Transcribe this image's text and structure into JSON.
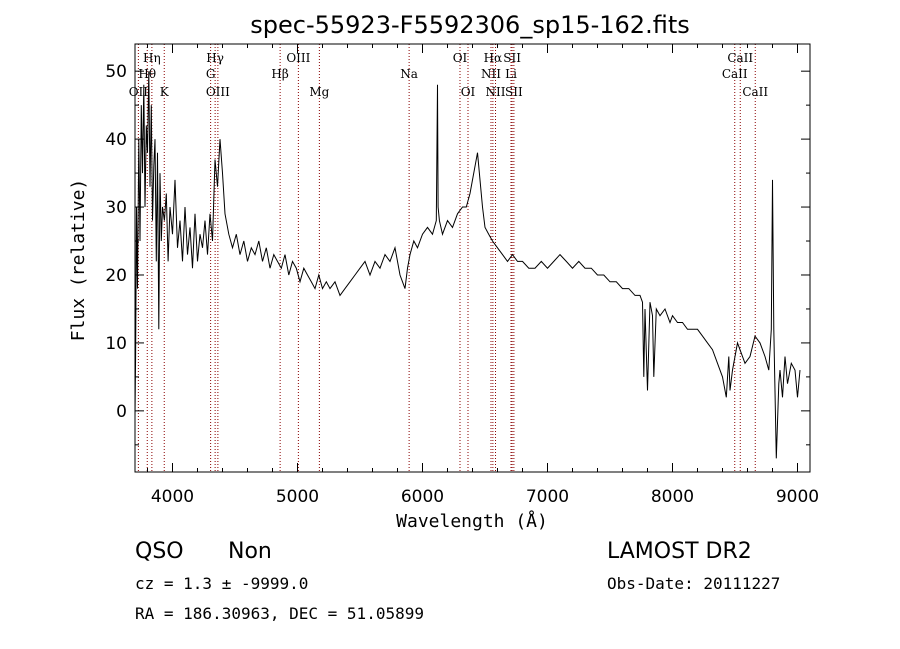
{
  "chart_data": {
    "type": "line",
    "title": "spec-55923-F5592306_sp15-162.fits",
    "xlabel": "Wavelength (Å)",
    "ylabel": "Flux (relative)",
    "xlim": [
      3700,
      9100
    ],
    "ylim": [
      -9,
      54
    ],
    "xticks": [
      4000,
      5000,
      6000,
      7000,
      8000,
      9000
    ],
    "yticks": [
      0,
      10,
      20,
      30,
      40,
      50
    ],
    "line_color": "#000000",
    "marker_color": "#8b0000",
    "grid": false,
    "legend": "none",
    "spectral_lines": [
      {
        "name": "OII",
        "wavelength": 3727,
        "row": 3
      },
      {
        "name": "Hη",
        "wavelength": 3835,
        "row": 1
      },
      {
        "name": "Hθ",
        "wavelength": 3798,
        "row": 2
      },
      {
        "name": "K",
        "wavelength": 3934,
        "row": 3
      },
      {
        "name": "Hγ",
        "wavelength": 4341,
        "row": 1
      },
      {
        "name": "G",
        "wavelength": 4305,
        "row": 2
      },
      {
        "name": "OIII",
        "wavelength": 4363,
        "row": 3
      },
      {
        "name": "OIII",
        "wavelength": 5007,
        "row": 1
      },
      {
        "name": "Hβ",
        "wavelength": 4861,
        "row": 2
      },
      {
        "name": "Mg",
        "wavelength": 5175,
        "row": 3
      },
      {
        "name": "Na",
        "wavelength": 5893,
        "row": 2
      },
      {
        "name": "OI",
        "wavelength": 6300,
        "row": 1
      },
      {
        "name": "OI",
        "wavelength": 6364,
        "row": 3
      },
      {
        "name": "Hα",
        "wavelength": 6563,
        "row": 1
      },
      {
        "name": "NII",
        "wavelength": 6548,
        "row": 2
      },
      {
        "name": "NII",
        "wavelength": 6584,
        "row": 3
      },
      {
        "name": "SII",
        "wavelength": 6717,
        "row": 1
      },
      {
        "name": "Li",
        "wavelength": 6708,
        "row": 2
      },
      {
        "name": "SII",
        "wavelength": 6731,
        "row": 3
      },
      {
        "name": "CaII",
        "wavelength": 8542,
        "row": 1
      },
      {
        "name": "CaII",
        "wavelength": 8498,
        "row": 2
      },
      {
        "name": "CaII",
        "wavelength": 8662,
        "row": 3
      }
    ],
    "series": [
      {
        "x": [
          3700,
          3705,
          3712,
          3720,
          3730,
          3740,
          3750,
          3760,
          3770,
          3780,
          3790,
          3800,
          3810,
          3820,
          3830,
          3840,
          3850,
          3860,
          3870,
          3880,
          3890,
          3900,
          3910,
          3920,
          3935,
          3950,
          3965,
          3980,
          4000,
          4020,
          4040,
          4060,
          4080,
          4100,
          4120,
          4140,
          4160,
          4180,
          4200,
          4220,
          4240,
          4260,
          4280,
          4300,
          4320,
          4340,
          4360,
          4380,
          4400,
          4420,
          4450,
          4480,
          4510,
          4540,
          4570,
          4600,
          4630,
          4660,
          4690,
          4720,
          4750,
          4780,
          4810,
          4840,
          4870,
          4900,
          4930,
          4960,
          4990,
          5020,
          5050,
          5080,
          5110,
          5140,
          5170,
          5200,
          5230,
          5260,
          5300,
          5340,
          5380,
          5420,
          5460,
          5500,
          5540,
          5580,
          5620,
          5660,
          5700,
          5740,
          5780,
          5820,
          5860,
          5880,
          5900,
          5930,
          5960,
          6000,
          6040,
          6080,
          6110,
          6120,
          6125,
          6135,
          6160,
          6200,
          6240,
          6280,
          6320,
          6350,
          6380,
          6400,
          6420,
          6440,
          6460,
          6480,
          6500,
          6530,
          6560,
          6600,
          6640,
          6680,
          6720,
          6760,
          6800,
          6850,
          6900,
          6950,
          7000,
          7050,
          7100,
          7150,
          7200,
          7250,
          7300,
          7350,
          7400,
          7450,
          7500,
          7550,
          7600,
          7650,
          7700,
          7740,
          7760,
          7770,
          7780,
          7800,
          7820,
          7840,
          7850,
          7870,
          7900,
          7940,
          7980,
          8000,
          8040,
          8080,
          8120,
          8160,
          8200,
          8240,
          8280,
          8320,
          8360,
          8400,
          8430,
          8450,
          8460,
          8480,
          8500,
          8520,
          8540,
          8580,
          8620,
          8660,
          8700,
          8740,
          8770,
          8790,
          8800,
          8810,
          8830,
          8850,
          8860,
          8880,
          8900,
          8920,
          8950,
          8980,
          9000,
          9020
        ],
        "y": [
          -1,
          8,
          30,
          18,
          40,
          25,
          45,
          35,
          48,
          30,
          42,
          38,
          50,
          33,
          45,
          28,
          36,
          40,
          22,
          38,
          12,
          35,
          25,
          30,
          28,
          32,
          22,
          30,
          26,
          34,
          24,
          28,
          22,
          30,
          23,
          27,
          21,
          29,
          22,
          26,
          24,
          28,
          23,
          29,
          25,
          37,
          33,
          40,
          35,
          29,
          26,
          24,
          26,
          23,
          25,
          22,
          24,
          23,
          25,
          22,
          24,
          21,
          23,
          22,
          21,
          23,
          20,
          22,
          21,
          19,
          21,
          20,
          19,
          18,
          20,
          18,
          19,
          18,
          19,
          17,
          18,
          19,
          20,
          21,
          22,
          20,
          22,
          21,
          23,
          22,
          24,
          20,
          18,
          21,
          23,
          25,
          24,
          26,
          27,
          26,
          28,
          48,
          30,
          28,
          26,
          28,
          27,
          29,
          30,
          30,
          32,
          34,
          36,
          38,
          34,
          30,
          27,
          26,
          25,
          24,
          23,
          22,
          23,
          22,
          22,
          21,
          21,
          22,
          21,
          22,
          23,
          22,
          21,
          22,
          21,
          21,
          20,
          20,
          19,
          19,
          18,
          18,
          17,
          17,
          16,
          5,
          15,
          3,
          16,
          14,
          5,
          15,
          14,
          15,
          13,
          14,
          13,
          13,
          12,
          12,
          12,
          11,
          10,
          9,
          7,
          5,
          2,
          8,
          3,
          6,
          8,
          10,
          9,
          7,
          8,
          11,
          10,
          8,
          6,
          12,
          34,
          12,
          -7,
          4,
          6,
          2,
          8,
          4,
          7,
          6,
          2,
          6
        ]
      }
    ],
    "annotations": {
      "class": "QSO",
      "subclass": "Non",
      "survey": "LAMOST DR2",
      "cz": "cz = 1.3 ± -9999.0",
      "obs_date": "Obs-Date: 20111227",
      "radec": "RA = 186.30963, DEC =  51.05899"
    }
  }
}
